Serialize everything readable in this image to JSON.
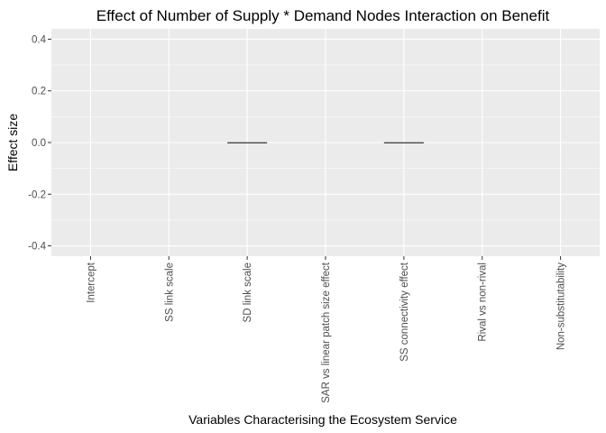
{
  "chart_data": {
    "type": "bar",
    "title": "Effect of Number of Supply * Demand Nodes Interaction on Benefit",
    "xlabel": "Variables Characterising the Ecosystem Service",
    "ylabel": "Effect size",
    "categories": [
      "Intercept",
      "SS link scale",
      "SD link scale",
      "SAR vs linear patch size effect",
      "SS connectivity effect",
      "Rival vs non-rival",
      "Non-substitutability"
    ],
    "values": [
      null,
      null,
      0.0,
      null,
      0.0,
      null,
      null
    ],
    "ylim": [
      -0.44,
      0.44
    ],
    "yticks": [
      -0.4,
      -0.2,
      0.0,
      0.2,
      0.4
    ],
    "ytick_labels": [
      "-0.4",
      "-0.2",
      "0.0",
      "0.2",
      "0.4"
    ],
    "grid": true,
    "colors": {
      "panel": "#ebebeb",
      "grid": "#ffffff",
      "bar_outline": "#333333",
      "tick_text": "#4d4d4d"
    }
  }
}
